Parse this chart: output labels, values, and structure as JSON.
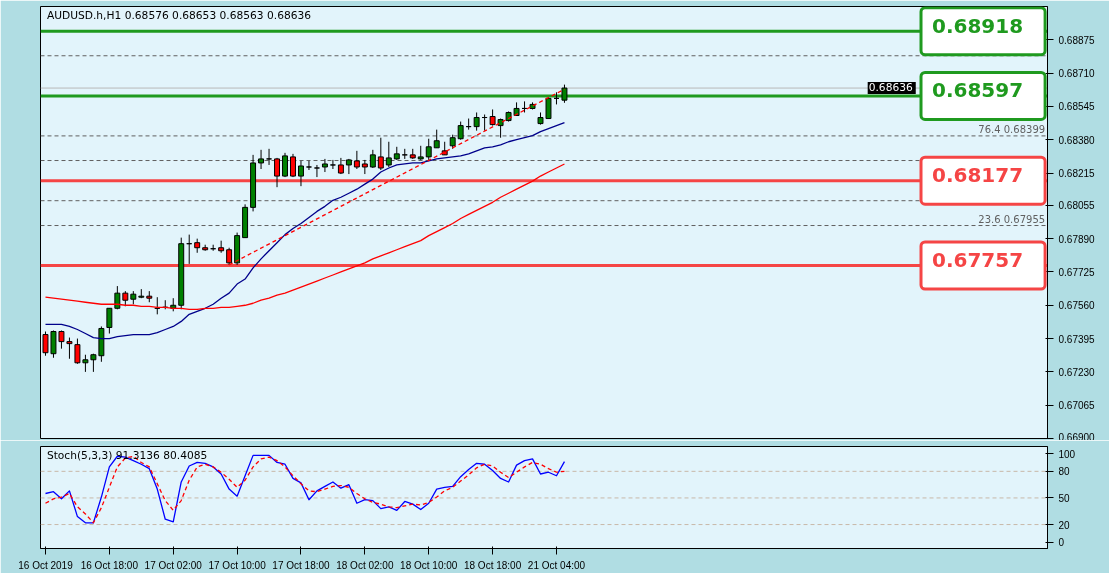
{
  "chart_data": [
    {
      "type": "candlestick",
      "title": "AUDUSD.h,H1  0.68576 0.68653 0.68563 0.68636",
      "categories": [
        null,
        null,
        null,
        null,
        null,
        null,
        null,
        null,
        null,
        null,
        null,
        null,
        null,
        null,
        null,
        null,
        null,
        null,
        null,
        null,
        null,
        null,
        null,
        null,
        null,
        null,
        null,
        null,
        null,
        null,
        null,
        null,
        null,
        null,
        null,
        null,
        null,
        null,
        null,
        null,
        null,
        null,
        null,
        null,
        null,
        null,
        null,
        null,
        null,
        null,
        null,
        null,
        null,
        null,
        null,
        null,
        null,
        null,
        null,
        null,
        null,
        null,
        null,
        null,
        null,
        null
      ],
      "ohlc": [
        [
          0.67415,
          0.6743,
          0.6731,
          0.67325
        ],
        [
          0.6732,
          0.67435,
          0.673,
          0.6743
        ],
        [
          0.6743,
          0.67435,
          0.67345,
          0.6738
        ],
        [
          0.6738,
          0.674,
          0.67295,
          0.6737
        ],
        [
          0.67365,
          0.67395,
          0.6727,
          0.67275
        ],
        [
          0.67275,
          0.67315,
          0.6723,
          0.6729
        ],
        [
          0.6729,
          0.6732,
          0.6723,
          0.67315
        ],
        [
          0.6731,
          0.67455,
          0.6728,
          0.67445
        ],
        [
          0.6745,
          0.67545,
          0.6742,
          0.67545
        ],
        [
          0.67545,
          0.67655,
          0.6754,
          0.6762
        ],
        [
          0.6762,
          0.6763,
          0.67555,
          0.67585
        ],
        [
          0.6759,
          0.6763,
          0.67565,
          0.67615
        ],
        [
          0.676,
          0.6764,
          0.67595,
          0.67605
        ],
        [
          0.67605,
          0.6763,
          0.67575,
          0.67595
        ],
        [
          0.67545,
          0.676,
          0.67515,
          0.67545
        ],
        [
          0.6755,
          0.67585,
          0.6754,
          0.6755
        ],
        [
          0.67545,
          0.67595,
          0.6753,
          0.6756
        ],
        [
          0.6756,
          0.67895,
          0.6754,
          0.67865
        ],
        [
          0.67865,
          0.6791,
          0.67765,
          0.67865
        ],
        [
          0.6787,
          0.6789,
          0.6782,
          0.67845
        ],
        [
          0.67845,
          0.6786,
          0.6783,
          0.67835
        ],
        [
          0.6784,
          0.6786,
          0.6783,
          0.6784
        ],
        [
          0.67845,
          0.6788,
          0.6782,
          0.6783
        ],
        [
          0.67835,
          0.67845,
          0.6776,
          0.6777
        ],
        [
          0.6777,
          0.6792,
          0.6776,
          0.67905
        ],
        [
          0.67895,
          0.6806,
          0.67895,
          0.68045
        ],
        [
          0.68045,
          0.68305,
          0.68025,
          0.68265
        ],
        [
          0.68265,
          0.6833,
          0.68235,
          0.68285
        ],
        [
          0.68285,
          0.68335,
          0.68255,
          0.68285
        ],
        [
          0.68285,
          0.6829,
          0.68145,
          0.682
        ],
        [
          0.682,
          0.68315,
          0.68195,
          0.683
        ],
        [
          0.68295,
          0.6831,
          0.68195,
          0.682
        ],
        [
          0.682,
          0.68275,
          0.6815,
          0.6825
        ],
        [
          0.68245,
          0.68275,
          0.6823,
          0.68245
        ],
        [
          0.6824,
          0.68255,
          0.68195,
          0.6824
        ],
        [
          0.68245,
          0.68285,
          0.6822,
          0.6826
        ],
        [
          0.68255,
          0.6828,
          0.68235,
          0.68255
        ],
        [
          0.68255,
          0.6829,
          0.6821,
          0.68215
        ],
        [
          0.68255,
          0.68285,
          0.6821,
          0.6828
        ],
        [
          0.68275,
          0.68325,
          0.68235,
          0.68245
        ],
        [
          0.6826,
          0.6828,
          0.6821,
          0.68245
        ],
        [
          0.68245,
          0.6833,
          0.6824,
          0.68305
        ],
        [
          0.68295,
          0.6839,
          0.6823,
          0.6824
        ],
        [
          0.68255,
          0.6837,
          0.68245,
          0.6829
        ],
        [
          0.68285,
          0.68345,
          0.6828,
          0.6831
        ],
        [
          0.68305,
          0.68335,
          0.68285,
          0.68305
        ],
        [
          0.68305,
          0.68335,
          0.68285,
          0.6829
        ],
        [
          0.68285,
          0.6835,
          0.6828,
          0.68295
        ],
        [
          0.68295,
          0.68385,
          0.6828,
          0.68345
        ],
        [
          0.6834,
          0.6843,
          0.6834,
          0.68375
        ],
        [
          0.68325,
          0.6837,
          0.68305,
          0.68305
        ],
        [
          0.6835,
          0.68405,
          0.68335,
          0.6839
        ],
        [
          0.68385,
          0.6847,
          0.6838,
          0.6845
        ],
        [
          0.68445,
          0.68485,
          0.6843,
          0.68445
        ],
        [
          0.68445,
          0.68515,
          0.68425,
          0.6849
        ],
        [
          0.6849,
          0.68505,
          0.68425,
          0.6849
        ],
        [
          0.68495,
          0.6853,
          0.6845,
          0.68455
        ],
        [
          0.6845,
          0.68485,
          0.6839,
          0.6848
        ],
        [
          0.68475,
          0.6852,
          0.6847,
          0.68515
        ],
        [
          0.685,
          0.68565,
          0.685,
          0.68535
        ],
        [
          0.68535,
          0.6857,
          0.68515,
          0.68535
        ],
        [
          0.68535,
          0.68565,
          0.6853,
          0.68555
        ],
        [
          0.6846,
          0.68515,
          0.68455,
          0.6849
        ],
        [
          0.68485,
          0.6859,
          0.68485,
          0.68585
        ],
        [
          0.68585,
          0.68615,
          0.68555,
          0.68585
        ],
        [
          0.68576,
          0.68653,
          0.68563,
          0.68636
        ]
      ],
      "colors": [
        "#ff0000",
        "#008000",
        "#ff0000",
        "#ff0000",
        "#ff0000",
        "#008000",
        "#008000",
        "#008000",
        "#008000",
        "#008000",
        "#ff0000",
        "#008000",
        "#008000",
        "#ff0000",
        "#000000",
        "#000000",
        "#008000",
        "#008000",
        "#000000",
        "#ff0000",
        "#ff0000",
        "#000000",
        "#ff0000",
        "#ff0000",
        "#008000",
        "#008000",
        "#008000",
        "#008000",
        "#000000",
        "#ff0000",
        "#008000",
        "#ff0000",
        "#008000",
        "#000000",
        "#000000",
        "#008000",
        "#000000",
        "#ff0000",
        "#008000",
        "#ff0000",
        "#ff0000",
        "#008000",
        "#ff0000",
        "#008000",
        "#008000",
        "#000000",
        "#ff0000",
        "#008000",
        "#008000",
        "#008000",
        "#ff0000",
        "#008000",
        "#008000",
        "#000000",
        "#008000",
        "#000000",
        "#ff0000",
        "#008000",
        "#008000",
        "#008000",
        "#000000",
        "#008000",
        "#008000",
        "#008000",
        "#000000",
        "#008000"
      ],
      "series": [
        {
          "type": "line",
          "color": "#00008b",
          "values": [
            0.67465,
            0.67465,
            0.67465,
            0.67455,
            0.6744,
            0.6742,
            0.674,
            0.67395,
            0.67395,
            0.67405,
            0.6741,
            0.67415,
            0.67415,
            0.67415,
            0.67425,
            0.6744,
            0.67455,
            0.6748,
            0.67515,
            0.6753,
            0.67545,
            0.67565,
            0.67595,
            0.6762,
            0.67665,
            0.6769,
            0.67745,
            0.6779,
            0.6783,
            0.6787,
            0.6791,
            0.6794,
            0.67965,
            0.67995,
            0.68025,
            0.6805,
            0.6808,
            0.68095,
            0.68115,
            0.68135,
            0.6816,
            0.68185,
            0.6822,
            0.6824,
            0.68255,
            0.6826,
            0.68265,
            0.68265,
            0.68275,
            0.68285,
            0.6829,
            0.68295,
            0.683,
            0.6831,
            0.68325,
            0.6834,
            0.68345,
            0.68355,
            0.6837,
            0.6838,
            0.6839,
            0.684,
            0.6842,
            0.68435,
            0.6845,
            0.68465
          ]
        },
        {
          "type": "line",
          "color": "#ff0000",
          "values": [
            0.676,
            0.67595,
            0.6759,
            0.67585,
            0.6758,
            0.67575,
            0.6757,
            0.67565,
            0.67565,
            0.67565,
            0.6756,
            0.6756,
            0.67555,
            0.67555,
            0.6755,
            0.6755,
            0.67545,
            0.67545,
            0.6754,
            0.6754,
            0.67545,
            0.67545,
            0.6755,
            0.6755,
            0.67555,
            0.6756,
            0.6757,
            0.67585,
            0.67595,
            0.6761,
            0.6762,
            0.67635,
            0.6765,
            0.67665,
            0.6768,
            0.67695,
            0.6771,
            0.67725,
            0.6774,
            0.67755,
            0.6777,
            0.6779,
            0.67805,
            0.6782,
            0.67835,
            0.6785,
            0.67865,
            0.6788,
            0.67905,
            0.67925,
            0.67945,
            0.67965,
            0.6799,
            0.6801,
            0.6803,
            0.6805,
            0.6807,
            0.68095,
            0.68115,
            0.68135,
            0.68155,
            0.68175,
            0.682,
            0.6822,
            0.6824,
            0.6826
          ]
        },
        {
          "type": "line",
          "color": "#ff0000",
          "line_style": "dashed",
          "values": [
            null,
            null,
            null,
            null,
            null,
            null,
            null,
            null,
            null,
            null,
            null,
            null,
            null,
            null,
            null,
            null,
            null,
            null,
            null,
            null,
            null,
            null,
            null,
            0.6776,
            null,
            null,
            null,
            null,
            null,
            null,
            null,
            null,
            null,
            null,
            null,
            null,
            null,
            null,
            null,
            null,
            null,
            null,
            null,
            null,
            null,
            null,
            null,
            null,
            null,
            null,
            null,
            null,
            null,
            null,
            null,
            null,
            null,
            null,
            null,
            null,
            null,
            null,
            null,
            null,
            null,
            0.6863
          ]
        }
      ],
      "ylim": [
        0.669,
        0.6904
      ],
      "yticks": [
        {
          "value": 0.669,
          "label": "0.66900"
        },
        {
          "value": 0.67065,
          "label": "0.67065"
        },
        {
          "value": 0.6723,
          "label": "0.67230"
        },
        {
          "value": 0.67395,
          "label": "0.67395"
        },
        {
          "value": 0.6756,
          "label": "0.67560"
        },
        {
          "value": 0.67725,
          "label": "0.67725"
        },
        {
          "value": 0.6789,
          "label": "0.67890"
        },
        {
          "value": 0.68055,
          "label": "0.68055"
        },
        {
          "value": 0.68215,
          "label": "0.68215"
        },
        {
          "value": 0.6838,
          "label": "0.68380"
        },
        {
          "value": 0.68545,
          "label": "0.68545"
        },
        {
          "value": 0.6871,
          "label": "0.68710"
        },
        {
          "value": 0.68875,
          "label": "0.68875"
        }
      ],
      "ref_lines": [
        {
          "axis": "y",
          "value": 0.68796,
          "color": "#606060",
          "line_style": "dashed"
        },
        {
          "axis": "y",
          "value": 0.68399,
          "label": "76.4 0.68399",
          "color": "#606060",
          "line_style": "dashed"
        },
        {
          "axis": "y",
          "value": 0.68277,
          "color": "#606060",
          "line_style": "dashed"
        },
        {
          "axis": "y",
          "value": 0.68078,
          "color": "#606060",
          "line_style": "dashed"
        },
        {
          "axis": "y",
          "value": 0.67955,
          "label": "23.6 0.67955",
          "color": "#606060",
          "line_style": "dashed"
        },
        {
          "axis": "y",
          "value": 0.68918,
          "label": "0.68918",
          "color": "#1f9a1f",
          "line_style": "solid"
        },
        {
          "axis": "y",
          "value": 0.68597,
          "label": "0.68597",
          "color": "#1f9a1f",
          "line_style": "solid"
        },
        {
          "axis": "y",
          "value": 0.68177,
          "label": "0.68177",
          "color": "#f54545",
          "line_style": "solid"
        },
        {
          "axis": "y",
          "value": 0.67757,
          "label": "0.67757",
          "color": "#f54545",
          "line_style": "solid"
        },
        {
          "axis": "y",
          "value": 0.68636,
          "label": "0.68636",
          "color": "#b8b8b8",
          "line_style": "solid"
        }
      ],
      "tick_labels": "y"
    },
    {
      "type": "line",
      "title": "Stoch(5,3,3) 91.3136 80.4085",
      "categories": [
        "16 Oct 2019",
        null,
        null,
        null,
        null,
        null,
        null,
        null,
        "16 Oct 18:00",
        null,
        null,
        null,
        null,
        null,
        null,
        null,
        "17 Oct 02:00",
        null,
        null,
        null,
        null,
        null,
        null,
        null,
        "17 Oct 10:00",
        null,
        null,
        null,
        null,
        null,
        null,
        null,
        "17 Oct 18:00",
        null,
        null,
        null,
        null,
        null,
        null,
        null,
        "18 Oct 02:00",
        null,
        null,
        null,
        null,
        null,
        null,
        null,
        "18 Oct 10:00",
        null,
        null,
        null,
        null,
        null,
        null,
        null,
        "18 Oct 18:00",
        null,
        null,
        null,
        null,
        null,
        null,
        null,
        "21 Oct 04:00",
        null
      ],
      "series": [
        {
          "color": "#0000ff",
          "values": [
            55,
            57,
            49,
            58,
            29,
            22,
            22,
            51,
            85,
            97,
            96,
            92,
            88,
            83,
            60,
            26,
            23,
            68,
            86,
            90,
            89,
            85,
            77,
            60,
            52,
            75,
            98,
            98,
            98,
            90,
            88,
            72,
            67,
            48,
            58,
            63,
            68,
            61,
            65,
            44,
            48,
            47,
            38,
            40,
            36,
            46,
            43,
            37,
            44,
            60,
            62,
            63,
            74,
            82,
            89,
            88,
            81,
            72,
            68,
            87,
            92,
            94,
            77,
            79,
            75,
            91
          ]
        },
        {
          "color": "#ff0000",
          "line_style": "dashed",
          "values": [
            44,
            49,
            51,
            55,
            40,
            32,
            22,
            39,
            62,
            85,
            95,
            97,
            90,
            85,
            66,
            47,
            36,
            47,
            70,
            85,
            88,
            85,
            79,
            71,
            62,
            70,
            85,
            94,
            96,
            92,
            85,
            75,
            66,
            58,
            57,
            60,
            63,
            64,
            62,
            55,
            49,
            45,
            43,
            40,
            39,
            41,
            43,
            42,
            45,
            51,
            58,
            62,
            69,
            76,
            84,
            88,
            86,
            79,
            73,
            79,
            85,
            90,
            88,
            83,
            79,
            80
          ]
        }
      ],
      "ylim": [
        -7,
        108
      ],
      "yticks": [
        0,
        20,
        50,
        80,
        100
      ],
      "ref_lines": [
        {
          "axis": "y",
          "value": 20,
          "color": "#c8b8a8",
          "line_style": "dashed"
        },
        {
          "axis": "y",
          "value": 50,
          "color": "#c8b8a8",
          "line_style": "dashed"
        },
        {
          "axis": "y",
          "value": 80,
          "color": "#c8b8a8",
          "line_style": "dashed"
        }
      ]
    }
  ]
}
